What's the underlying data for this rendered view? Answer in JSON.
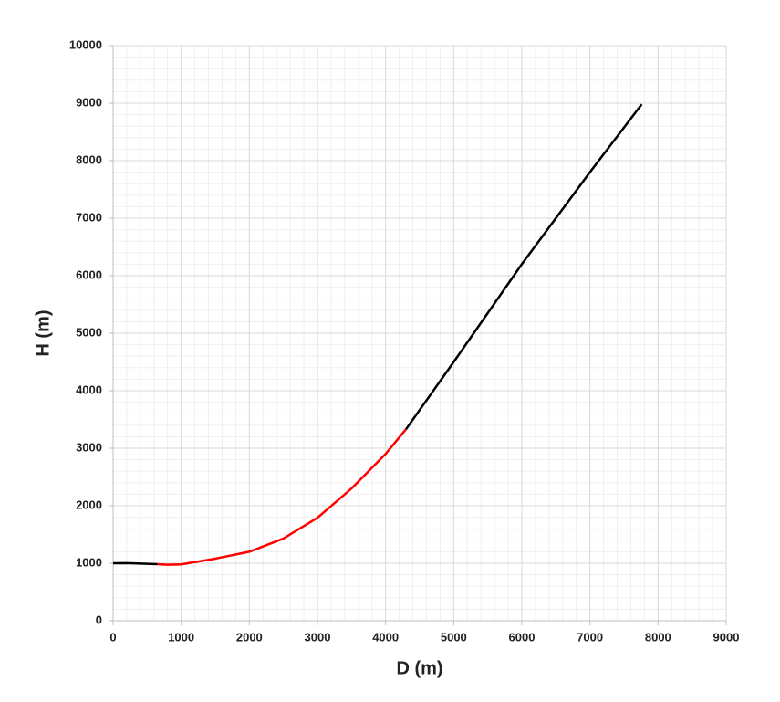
{
  "chart_data": {
    "type": "line",
    "x_label": "D (m)",
    "y_label": "H (m)",
    "xlim": [
      0,
      9000
    ],
    "xticks": [
      0,
      1000,
      2000,
      3000,
      4000,
      5000,
      6000,
      7000,
      8000,
      9000
    ],
    "ylim": [
      0,
      10000
    ],
    "yticks": [
      0,
      1000,
      2000,
      3000,
      4000,
      5000,
      6000,
      7000,
      8000,
      9000,
      10000
    ],
    "grid": true,
    "minor_grid": true,
    "series": [
      {
        "color": "#000000",
        "x": [
          0,
          200,
          400,
          650
        ],
        "values": [
          1000,
          1002,
          995,
          985
        ]
      },
      {
        "color": "#ff0000",
        "x": [
          650,
          800,
          1000,
          1500,
          2000,
          2500,
          3000,
          3500,
          4000,
          4300
        ],
        "values": [
          985,
          975,
          980,
          1080,
          1200,
          1430,
          1790,
          2300,
          2900,
          3330
        ]
      },
      {
        "color": "#000000",
        "x": [
          4300,
          5000,
          6000,
          7000,
          7760
        ],
        "values": [
          3330,
          4500,
          6200,
          7800,
          8980
        ]
      }
    ]
  }
}
